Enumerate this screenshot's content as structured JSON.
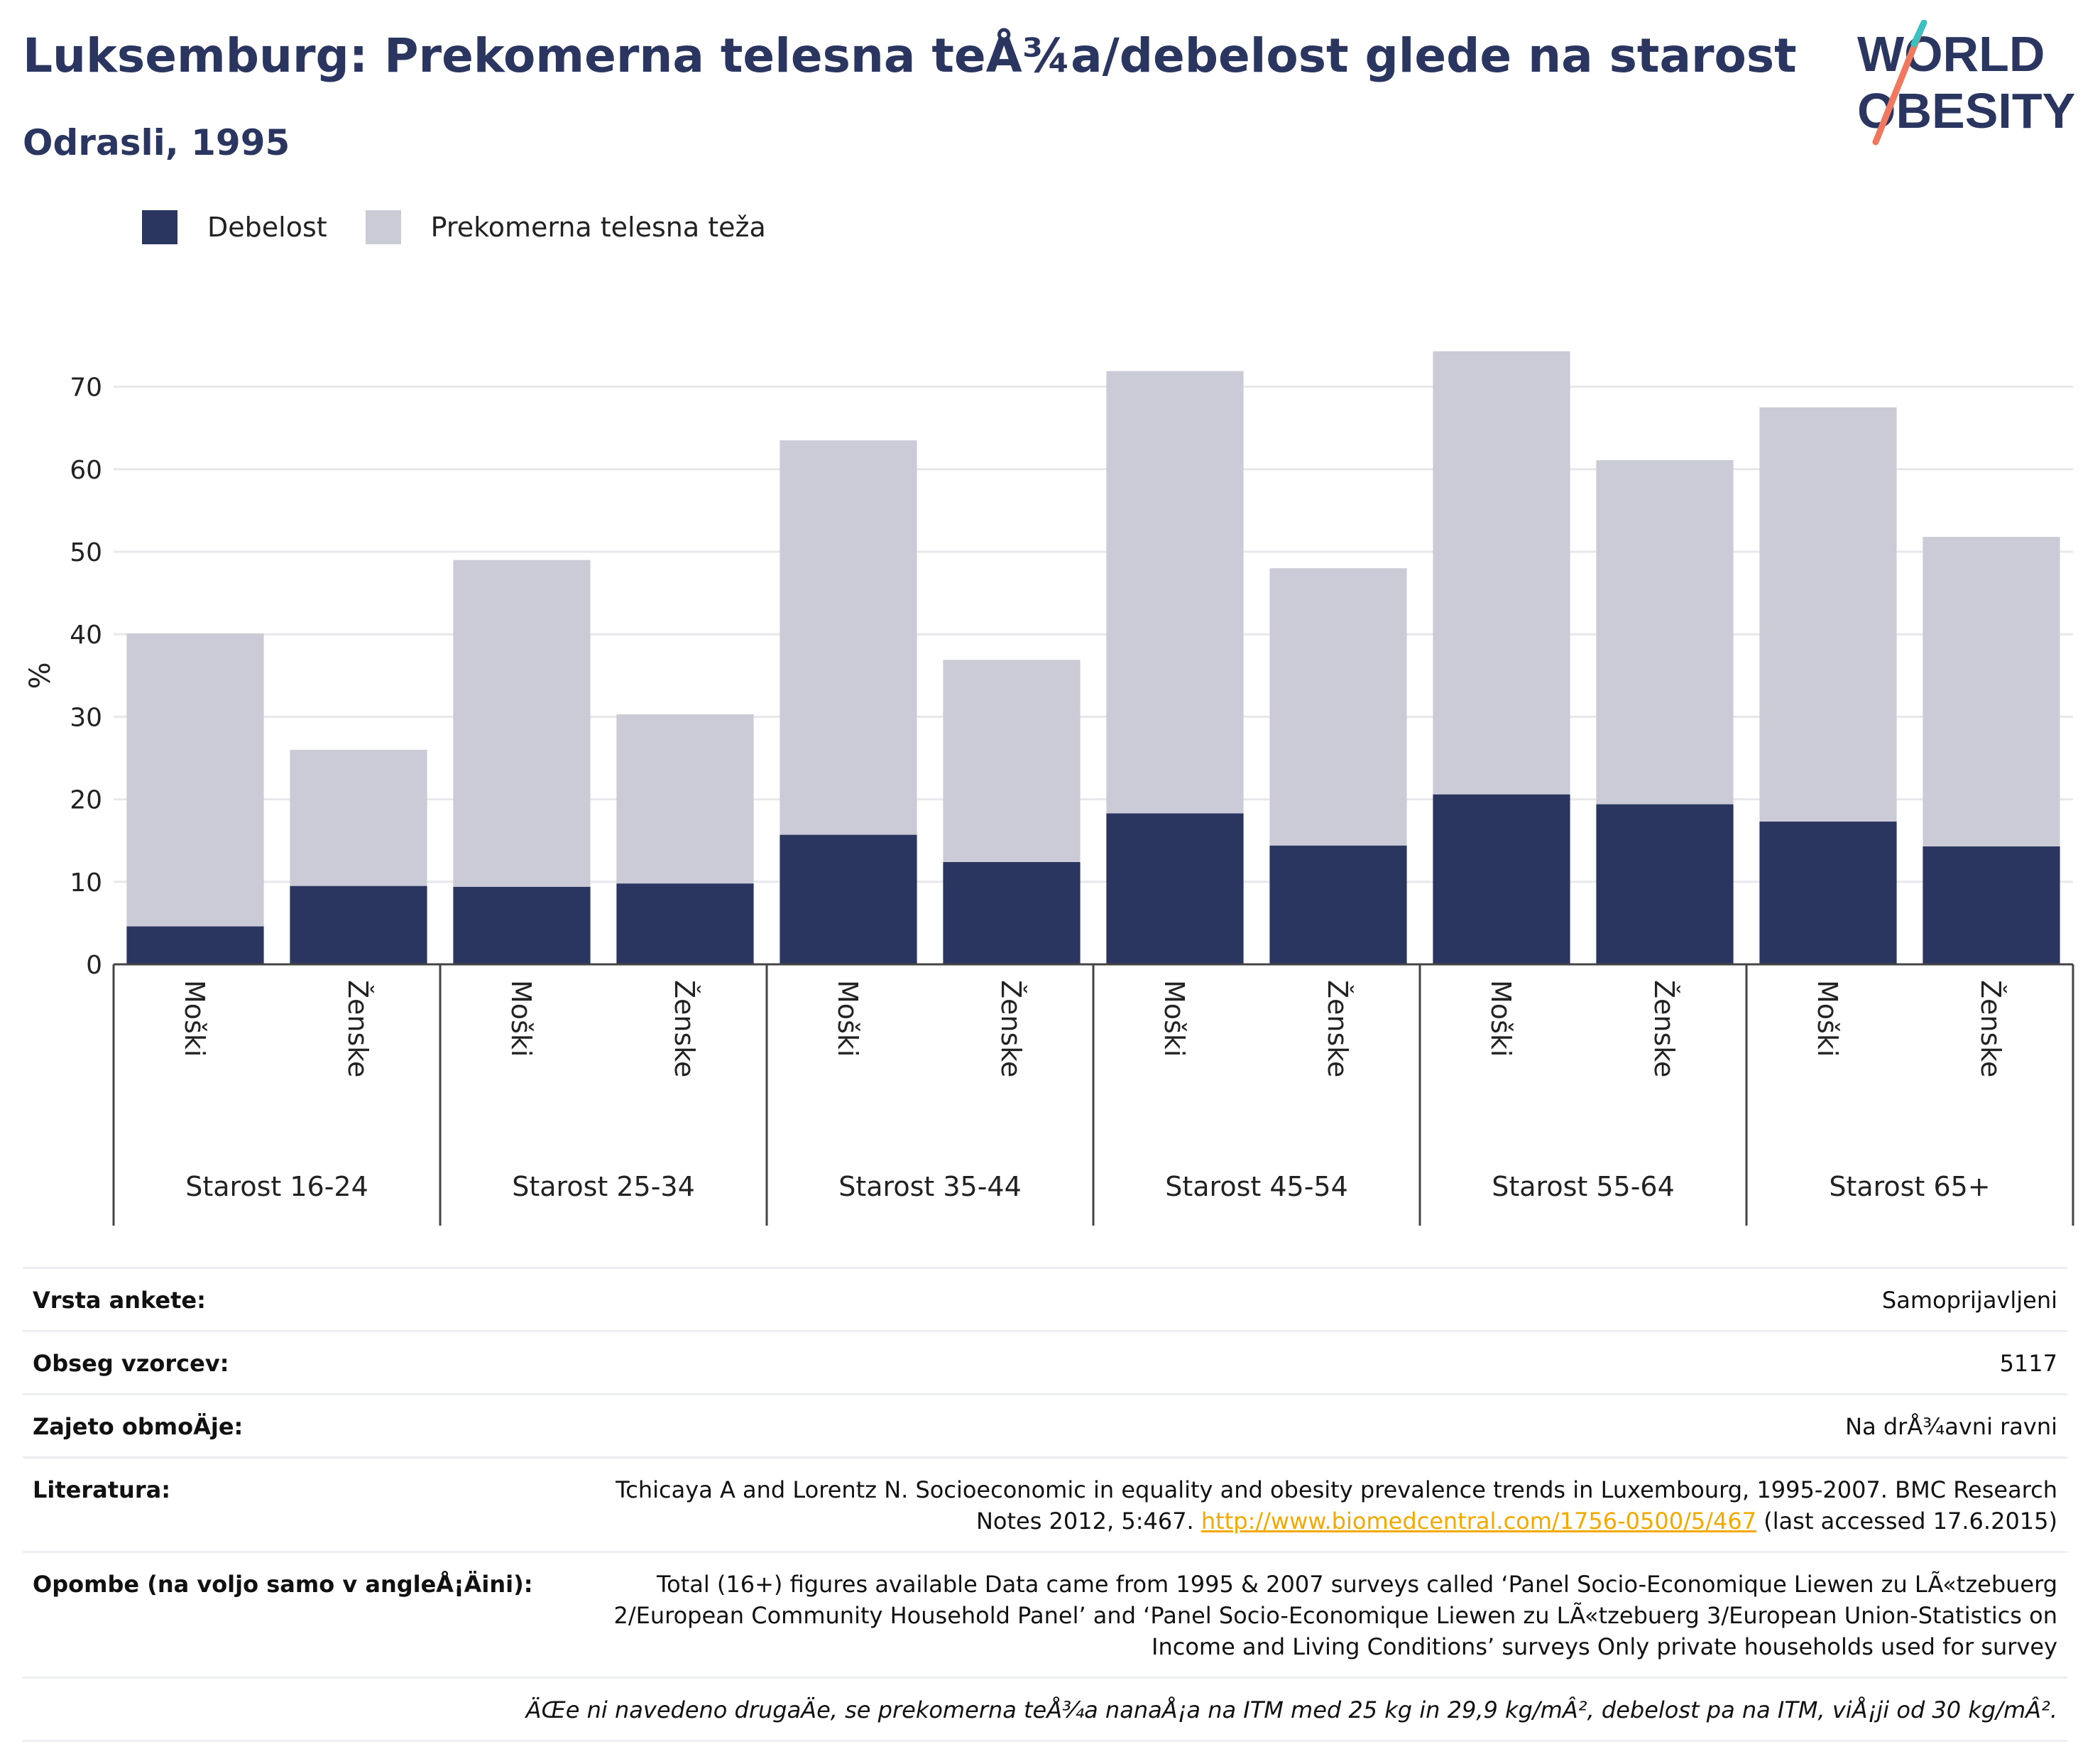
{
  "title": "Luksemburg: Prekomerna telesna teÅ¾a/debelost glede na starost",
  "subtitle": "Odrasli, 1995",
  "logo": {
    "line1": "WORLD",
    "line2": "OBESITY"
  },
  "colors": {
    "obesity": "#2a3560",
    "overweight": "#cacbd6",
    "accent_orange": "#f07860",
    "accent_teal": "#3cc0c0",
    "link": "#f2a900",
    "brand": "#2a3560"
  },
  "chart_data": {
    "type": "bar",
    "stacked": true,
    "ylabel": "%",
    "ylim": [
      0,
      75
    ],
    "yticks": [
      0,
      10,
      20,
      30,
      40,
      50,
      60,
      70
    ],
    "grid": true,
    "legend_position": "top-left",
    "groups": [
      "Starost 16-24",
      "Starost 25-34",
      "Starost 35-44",
      "Starost 45-54",
      "Starost 55-64",
      "Starost 65+"
    ],
    "categories": [
      "Moški",
      "Ženske",
      "Moški",
      "Ženske",
      "Moški",
      "Ženske",
      "Moški",
      "Ženske",
      "Moški",
      "Ženske",
      "Moški",
      "Ženske"
    ],
    "series": [
      {
        "name": "Debelost",
        "values": [
          4.6,
          9.5,
          9.4,
          9.8,
          15.7,
          12.4,
          18.3,
          14.4,
          20.6,
          19.4,
          17.3,
          14.3
        ]
      },
      {
        "name": "Prekomerna telesna teža",
        "values": [
          35.5,
          16.5,
          39.6,
          20.5,
          47.8,
          24.5,
          53.6,
          33.6,
          53.7,
          41.7,
          50.2,
          37.5
        ]
      }
    ]
  },
  "info": {
    "survey_type_label": "Vrsta ankete:",
    "survey_type_value": "Samoprijavljeni",
    "sample_label": "Obseg vzorcev:",
    "sample_value": "5117",
    "area_label": "Zajeto obmoÄje:",
    "area_value": "Na drÅ¾avni ravni",
    "literature_label": "Literatura:",
    "literature_text": "Tchicaya A and Lorentz N. Socioeconomic in equality and obesity prevalence trends in Luxembourg, 1995-2007. BMC Research Notes 2012, 5:467.",
    "literature_link": "http://www.biomedcentral.com/1756-0500/5/467",
    "literature_accessed": "(last accessed 17.6.2015)",
    "notes_label": "Opombe (na voljo samo v angleÅ¡Äini):",
    "notes_value": "Total (16+) figures available Data came from 1995 & 2007 surveys called ‘Panel Socio-Economique Liewen zu LÃ«tzebuerg 2/European Community Household Panel’ and ‘Panel Socio-Economique Liewen zu LÃ«tzebuerg 3/European Union-Statistics on Income and Living Conditions’ surveys Only private households used for survey",
    "footnote": "ÄŒe ni navedeno drugaÄe, se prekomerna teÅ¾a nanaÅ¡a na ITM med 25 kg in 29,9 kg/mÂ², debelost pa na ITM, viÅ¡ji od 30 kg/mÂ²."
  }
}
